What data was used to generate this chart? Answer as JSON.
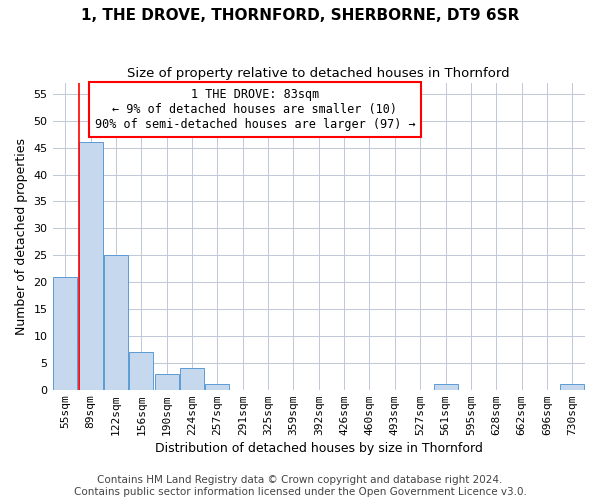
{
  "title": "1, THE DROVE, THORNFORD, SHERBORNE, DT9 6SR",
  "subtitle": "Size of property relative to detached houses in Thornford",
  "xlabel": "Distribution of detached houses by size in Thornford",
  "ylabel": "Number of detached properties",
  "categories": [
    "55sqm",
    "89sqm",
    "122sqm",
    "156sqm",
    "190sqm",
    "224sqm",
    "257sqm",
    "291sqm",
    "325sqm",
    "359sqm",
    "392sqm",
    "426sqm",
    "460sqm",
    "493sqm",
    "527sqm",
    "561sqm",
    "595sqm",
    "628sqm",
    "662sqm",
    "696sqm",
    "730sqm"
  ],
  "values": [
    21,
    46,
    25,
    7,
    3,
    4,
    1,
    0,
    0,
    0,
    0,
    0,
    0,
    0,
    0,
    1,
    0,
    0,
    0,
    0,
    1
  ],
  "bar_color": "#c5d8ed",
  "bar_edge_color": "#5b9bd5",
  "annotation_box_text": "1 THE DROVE: 83sqm\n← 9% of detached houses are smaller (10)\n90% of semi-detached houses are larger (97) →",
  "red_line_x": 0.525,
  "ylim": [
    0,
    57
  ],
  "yticks": [
    0,
    5,
    10,
    15,
    20,
    25,
    30,
    35,
    40,
    45,
    50,
    55
  ],
  "footer_line1": "Contains HM Land Registry data © Crown copyright and database right 2024.",
  "footer_line2": "Contains public sector information licensed under the Open Government Licence v3.0.",
  "background_color": "#ffffff",
  "grid_color": "#c0c8d8",
  "title_fontsize": 11,
  "subtitle_fontsize": 9.5,
  "axis_label_fontsize": 9,
  "tick_fontsize": 8,
  "annot_fontsize": 8.5,
  "footer_fontsize": 7.5
}
